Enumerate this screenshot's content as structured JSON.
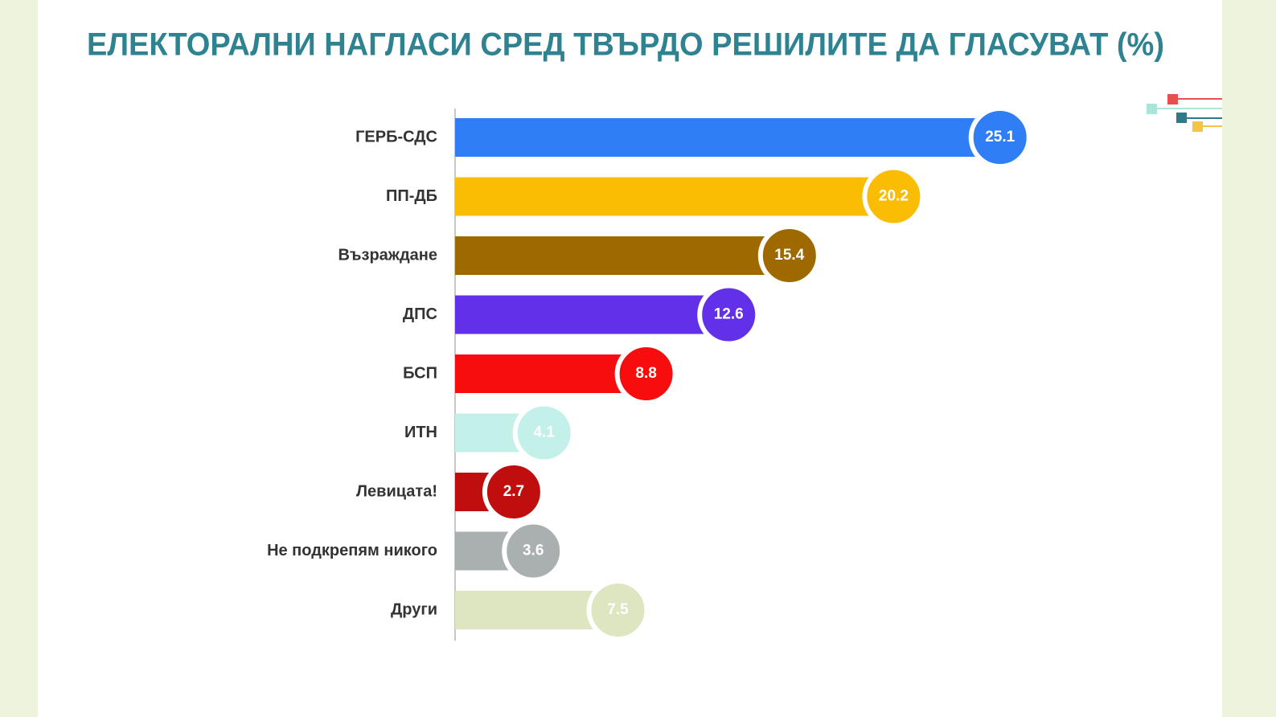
{
  "chart_data": {
    "type": "bar",
    "orientation": "horizontal",
    "title": "ЕЛЕКТОРАЛНИ НАГЛАСИ СРЕД ТВЪРДО РЕШИЛИТЕ ДА ГЛАСУВАТ (%)",
    "categories": [
      "ГЕРБ-СДС",
      "ПП-ДБ",
      "Възраждане",
      "ДПС",
      "БСП",
      "ИТН",
      "Левицата!",
      "Не подкрепям никого",
      "Други"
    ],
    "values": [
      25.1,
      20.2,
      15.4,
      12.6,
      8.8,
      4.1,
      2.7,
      3.6,
      7.5
    ],
    "colors": [
      "#2f7ef5",
      "#fbbc04",
      "#9e6a00",
      "#6230e8",
      "#f70d0d",
      "#c3f0e9",
      "#c00e0e",
      "#aab0b0",
      "#dde6c0"
    ]
  }
}
